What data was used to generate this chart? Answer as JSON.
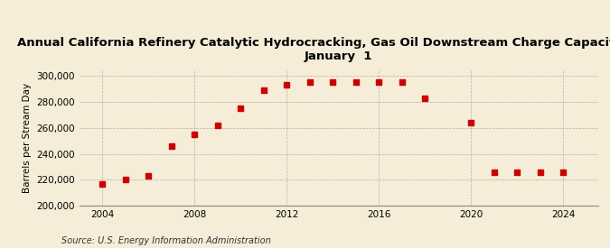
{
  "title_line1": "Annual California Refinery Catalytic Hydrocracking, Gas Oil Downstream Charge Capacity as of",
  "title_line2": "January  1",
  "ylabel": "Barrels per Stream Day",
  "source": "Source: U.S. Energy Information Administration",
  "background_color": "#f5edd8",
  "plot_background_color": "#f5edd8",
  "marker_color": "#cc0000",
  "years": [
    2004,
    2005,
    2006,
    2007,
    2008,
    2009,
    2010,
    2011,
    2012,
    2013,
    2014,
    2015,
    2016,
    2017,
    2018,
    2020,
    2021,
    2022,
    2023,
    2024
  ],
  "values": [
    217000,
    220000,
    223000,
    246000,
    255000,
    262000,
    275000,
    289000,
    293000,
    295000,
    295000,
    295000,
    295000,
    295000,
    283000,
    264000,
    226000,
    226000,
    226000,
    226000
  ],
  "ylim": [
    200000,
    305000
  ],
  "xlim": [
    2003,
    2025.5
  ],
  "yticks": [
    200000,
    220000,
    240000,
    260000,
    280000,
    300000
  ],
  "xticks": [
    2004,
    2008,
    2012,
    2016,
    2020,
    2024
  ],
  "title_fontsize": 9.5,
  "label_fontsize": 7.5,
  "tick_fontsize": 7.5,
  "source_fontsize": 7
}
